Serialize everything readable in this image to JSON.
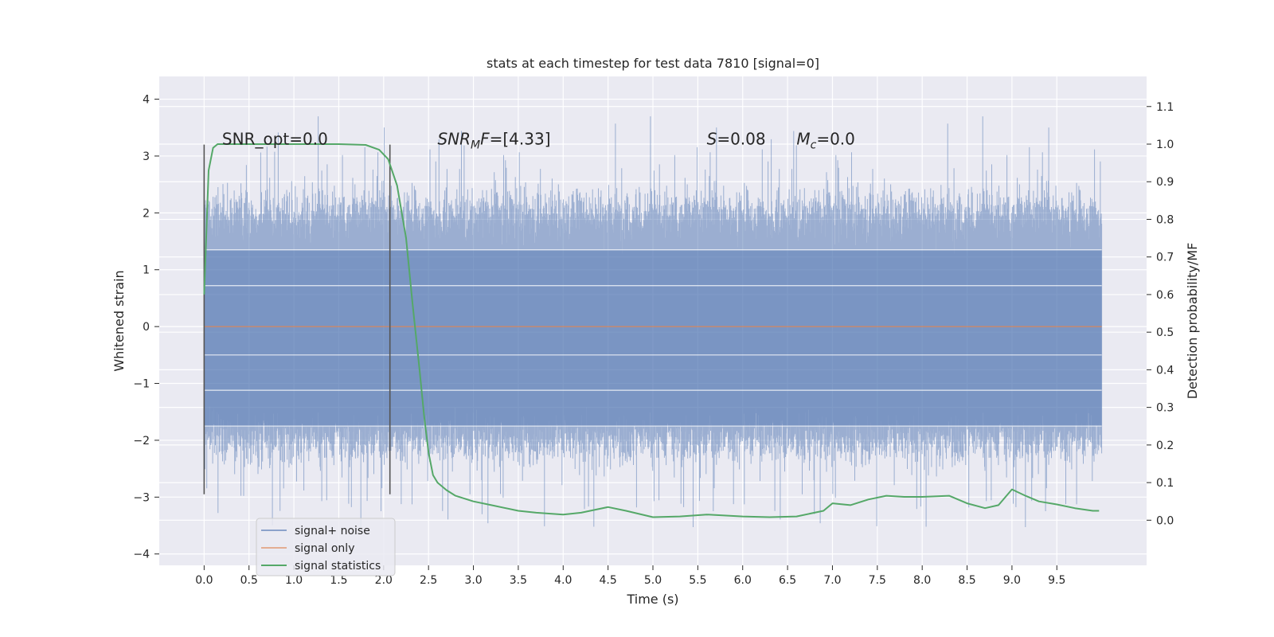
{
  "chart_data": {
    "type": "line",
    "title": "stats at each timestep for test data 7810 [signal=0]",
    "xlabel": "Time (s)",
    "ylabel": "Whitened strain",
    "y2label": "Detection probability/MF",
    "xlim": [
      -0.5,
      10.5
    ],
    "ylim": [
      -4.2,
      4.4
    ],
    "y2lim": [
      -0.12,
      1.18
    ],
    "x_ticks": [
      0.0,
      0.5,
      1.0,
      1.5,
      2.0,
      2.5,
      3.0,
      3.5,
      4.0,
      4.5,
      5.0,
      5.5,
      6.0,
      6.5,
      7.0,
      7.5,
      8.0,
      8.5,
      9.0,
      9.5
    ],
    "y_ticks": [
      4,
      3,
      2,
      1,
      0,
      -1,
      -2,
      -3,
      -4
    ],
    "y2_ticks": [
      1.1,
      1.0,
      0.9,
      0.8,
      0.7,
      0.6,
      0.5,
      0.4,
      0.3,
      0.2,
      0.1,
      0.0
    ],
    "grid": true,
    "legend_position": "bottom-left",
    "colors": {
      "noise": "#4c72b0",
      "signal": "#dd8452",
      "stats": "#55a868",
      "window": "#555555",
      "background": "#eaeaf2"
    },
    "annotations": [
      {
        "text": "SNR_opt=0.0",
        "x": 0.2,
        "y": 3.3
      },
      {
        "text": "SNR_MF=[4.33]",
        "x": 2.6,
        "y": 3.3
      },
      {
        "text": "S=0.08",
        "x": 5.6,
        "y": 3.3
      },
      {
        "text": "M_c=0.0",
        "x": 6.6,
        "y": 3.3
      }
    ],
    "window_lines": {
      "x": [
        0.0,
        2.07
      ],
      "ymin": -2.95,
      "ymax": 3.2
    },
    "series": [
      {
        "name": "signal+ noise",
        "axis": "left",
        "x_range": [
          0.0,
          10.0
        ],
        "envelope": {
          "typical_min": -2.0,
          "typical_max": 2.0,
          "extreme_min": -3.8,
          "extreme_max": 4.05
        }
      },
      {
        "name": "signal only",
        "axis": "left",
        "x": [
          0.0,
          10.0
        ],
        "y": [
          0.0,
          0.0
        ]
      },
      {
        "name": "signal statistics",
        "axis": "right",
        "x": [
          0.0,
          0.05,
          0.1,
          0.15,
          0.3,
          0.5,
          1.0,
          1.5,
          1.8,
          1.95,
          2.05,
          2.15,
          2.25,
          2.32,
          2.4,
          2.45,
          2.5,
          2.55,
          2.6,
          2.7,
          2.8,
          3.0,
          3.2,
          3.5,
          3.7,
          4.0,
          4.2,
          4.5,
          4.7,
          5.0,
          5.3,
          5.6,
          6.0,
          6.3,
          6.6,
          6.9,
          7.0,
          7.2,
          7.4,
          7.6,
          7.8,
          8.0,
          8.3,
          8.5,
          8.7,
          8.85,
          9.0,
          9.15,
          9.3,
          9.5,
          9.7,
          9.9,
          9.97
        ],
        "y": [
          0.6,
          0.93,
          0.99,
          1.0,
          1.0,
          1.0,
          1.0,
          1.0,
          0.998,
          0.985,
          0.96,
          0.89,
          0.75,
          0.58,
          0.4,
          0.28,
          0.18,
          0.12,
          0.1,
          0.08,
          0.065,
          0.05,
          0.04,
          0.025,
          0.02,
          0.015,
          0.02,
          0.035,
          0.025,
          0.008,
          0.01,
          0.015,
          0.01,
          0.008,
          0.01,
          0.025,
          0.045,
          0.04,
          0.055,
          0.065,
          0.062,
          0.062,
          0.065,
          0.045,
          0.032,
          0.04,
          0.082,
          0.065,
          0.05,
          0.042,
          0.032,
          0.025,
          0.025
        ]
      }
    ]
  }
}
